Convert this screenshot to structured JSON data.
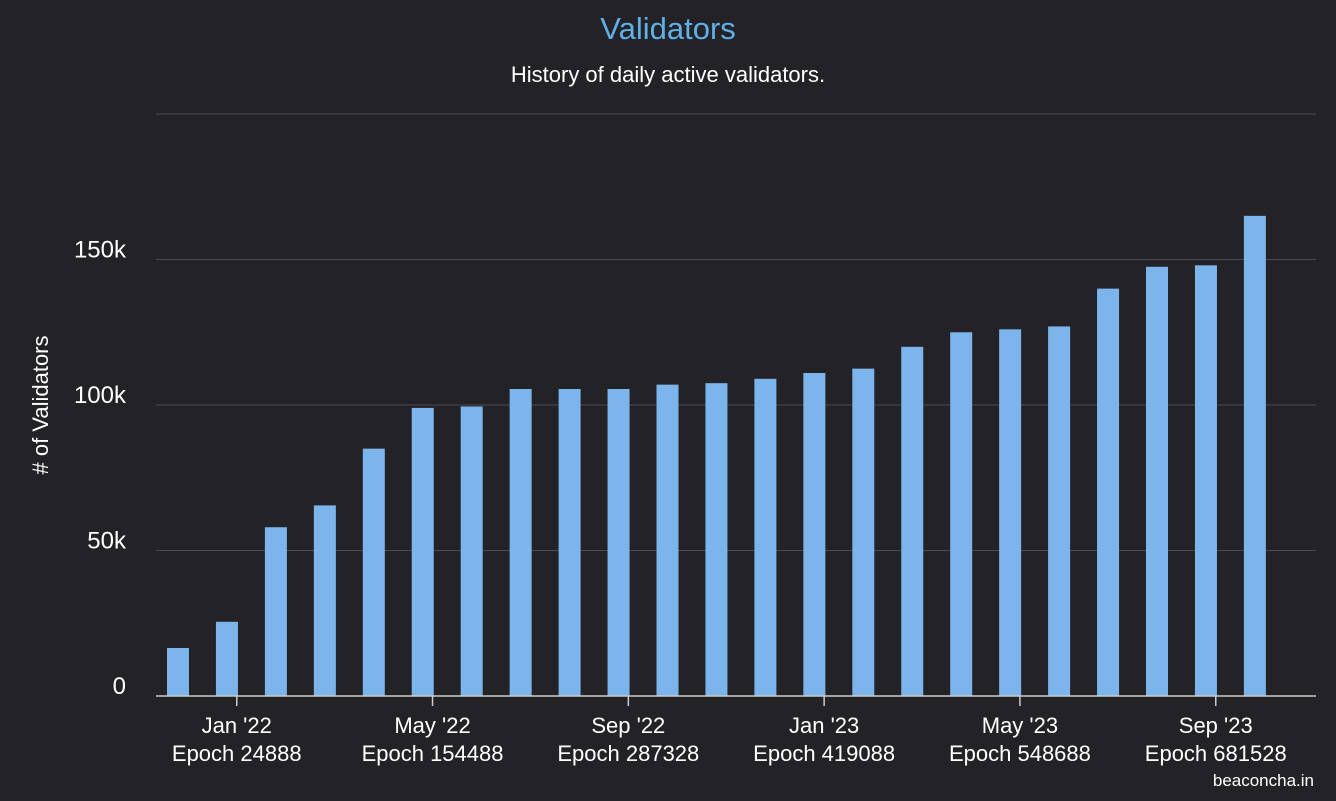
{
  "chart_data": {
    "type": "bar",
    "title": "Validators",
    "subtitle": "History of daily active validators.",
    "ylabel": "# of Validators",
    "xlabel": "",
    "ylim": [
      0,
      200000
    ],
    "y_ticks": [
      {
        "value": 0,
        "label": "0"
      },
      {
        "value": 50000,
        "label": "50k"
      },
      {
        "value": 100000,
        "label": "100k"
      },
      {
        "value": 150000,
        "label": "150k"
      }
    ],
    "grid": true,
    "legend": "none",
    "values": [
      16500,
      25500,
      58000,
      65500,
      85000,
      99000,
      99500,
      105500,
      105500,
      105500,
      107000,
      107500,
      109000,
      111000,
      112500,
      120000,
      125000,
      126000,
      127000,
      140000,
      147500,
      148000,
      165000
    ],
    "x_ticks": [
      {
        "bar_index": 1.2,
        "month": "Jan '22",
        "epoch": "Epoch 24888"
      },
      {
        "bar_index": 5.2,
        "month": "May '22",
        "epoch": "Epoch 154488"
      },
      {
        "bar_index": 9.2,
        "month": "Sep '22",
        "epoch": "Epoch 287328"
      },
      {
        "bar_index": 13.2,
        "month": "Jan '23",
        "epoch": "Epoch 419088"
      },
      {
        "bar_index": 17.2,
        "month": "May '23",
        "epoch": "Epoch 548688"
      },
      {
        "bar_index": 21.2,
        "month": "Sep '23",
        "epoch": "Epoch 681528"
      }
    ]
  },
  "credit": "beaconcha.in",
  "colors": {
    "background": "#232227",
    "bar": "#7cb5ec",
    "title": "#5fb0e6",
    "text": "#ffffff",
    "grid": "#4a4a50",
    "axis": "#cccccc"
  }
}
